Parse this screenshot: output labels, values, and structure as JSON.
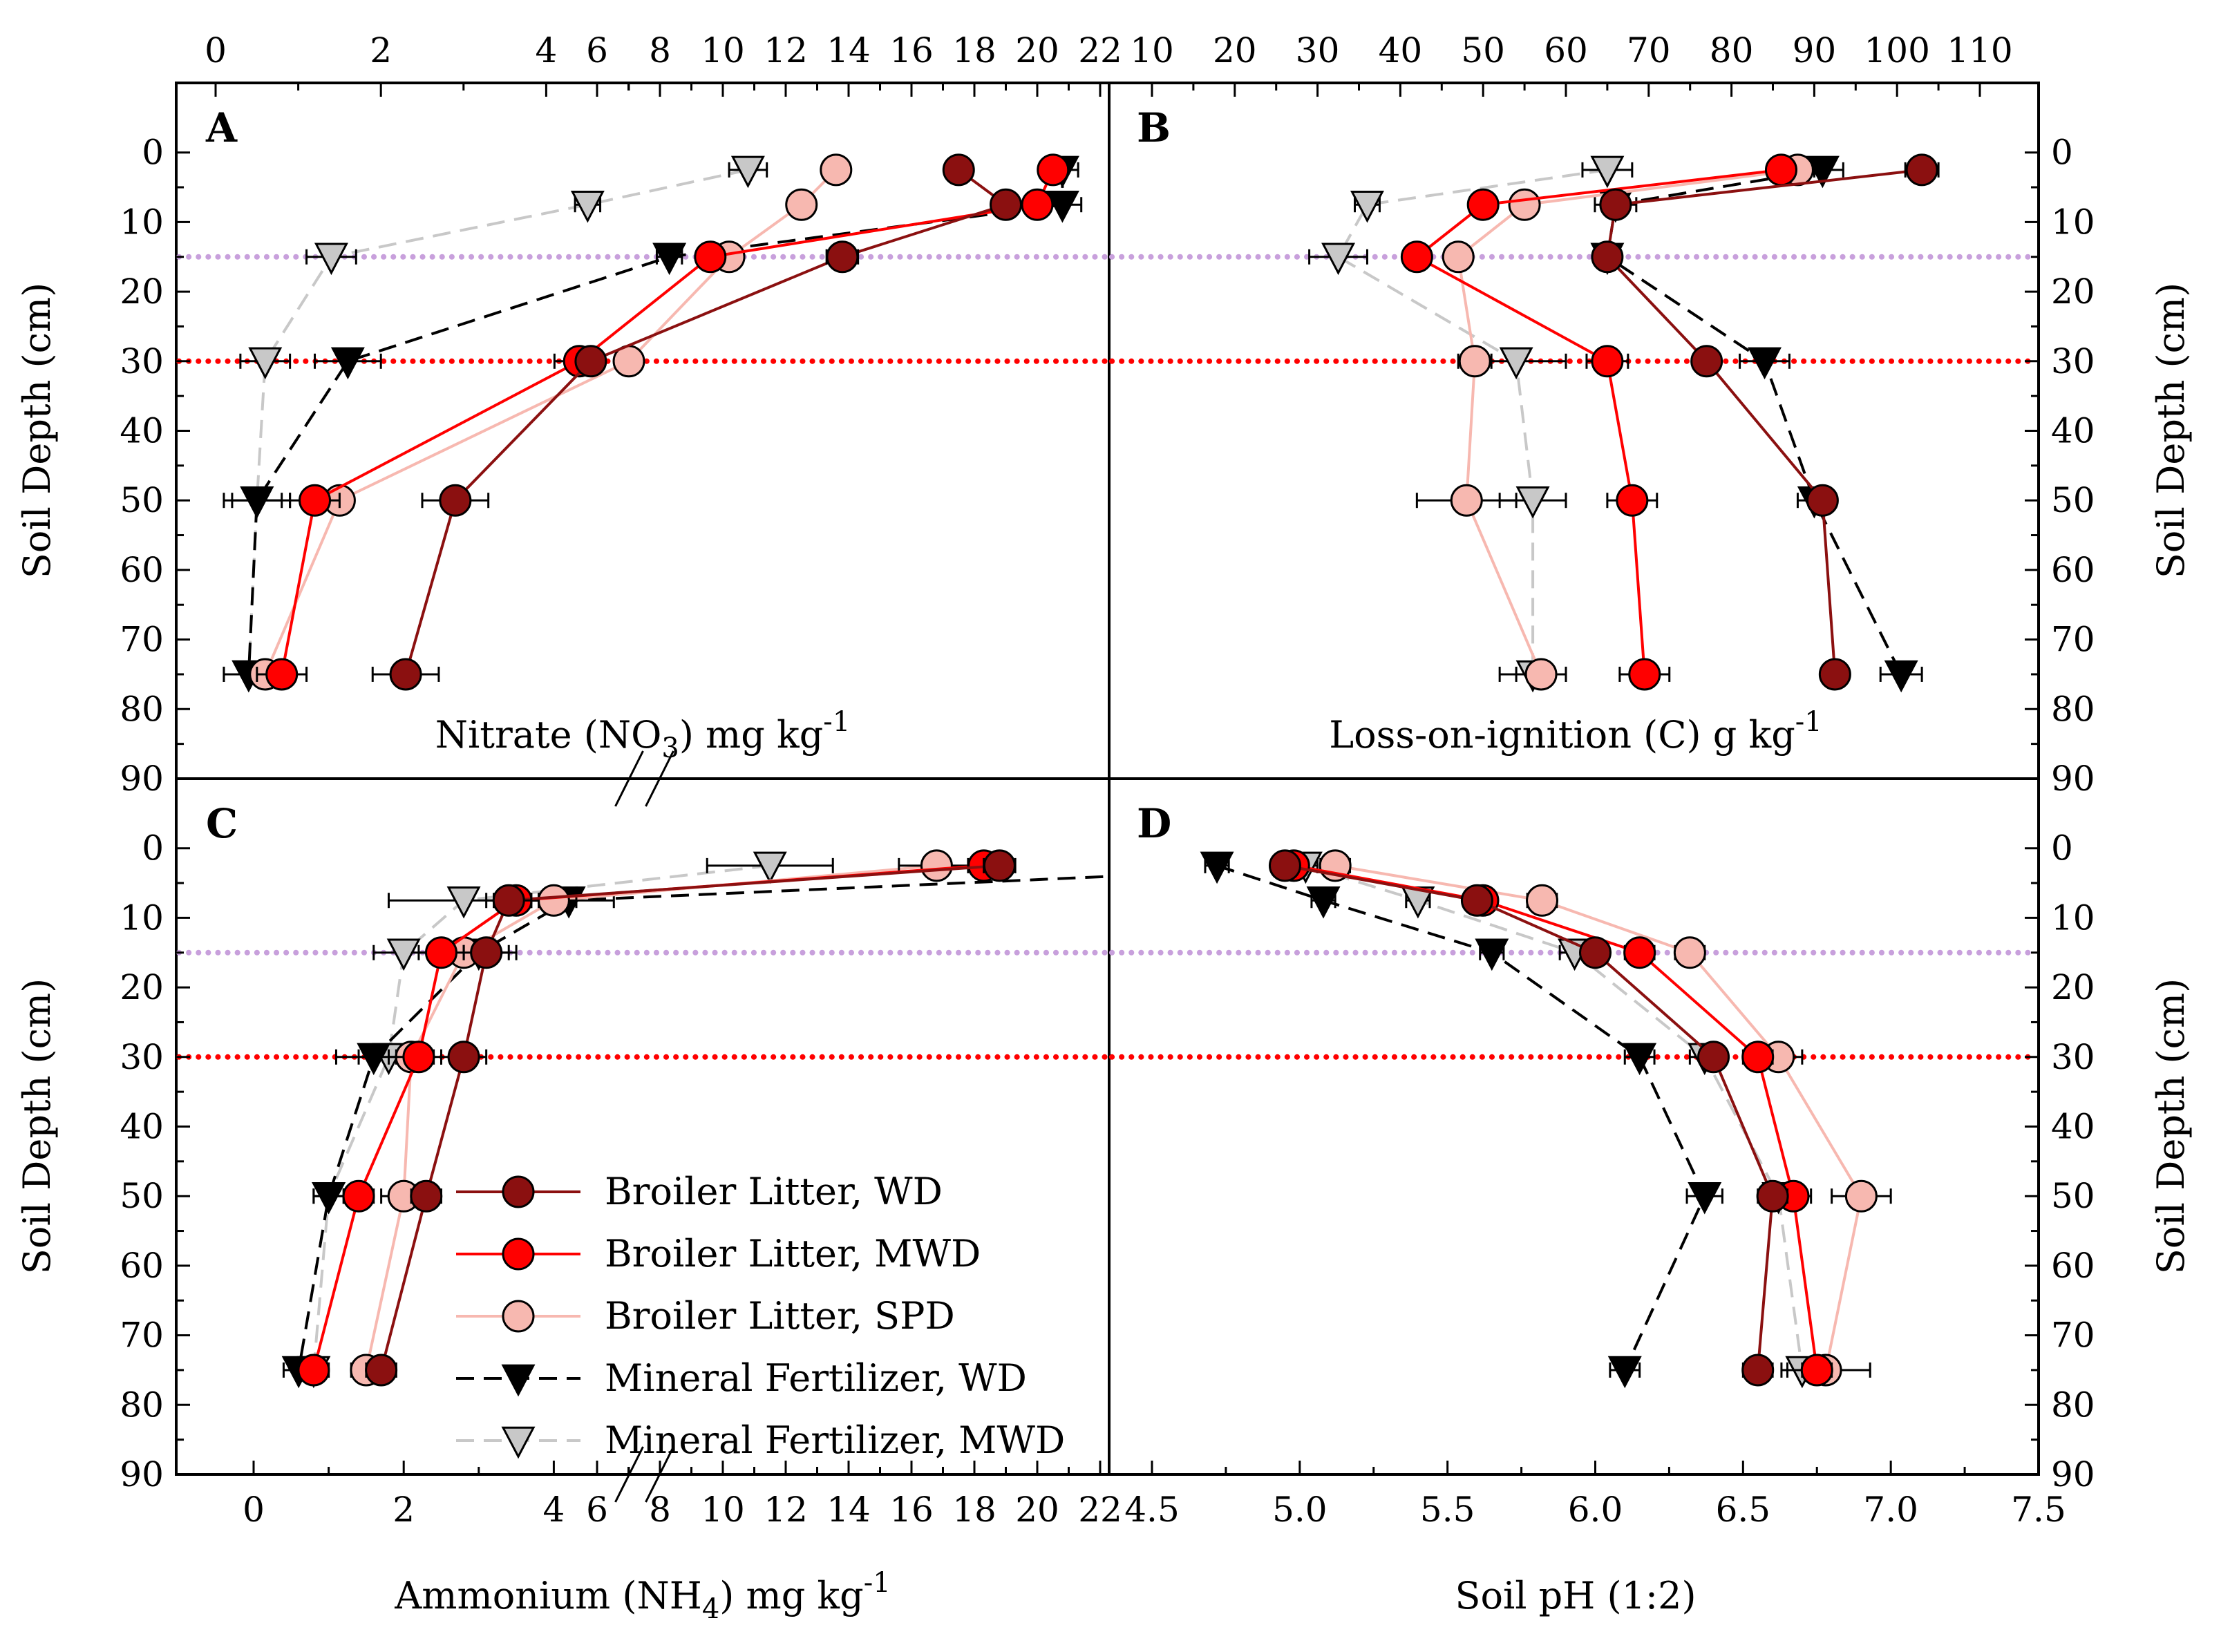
{
  "figure": {
    "left_ylabel": "Soil Depth (cm)",
    "right_ylabel": "Soil Depth (cm)",
    "depth_ticks": [
      "0",
      "10",
      "20",
      "30",
      "40",
      "50",
      "60",
      "70",
      "80",
      "90"
    ]
  },
  "legend": [
    {
      "name": "Broiler Litter, WD",
      "marker": "circle",
      "color": "#8b1010",
      "line": "solid"
    },
    {
      "name": "Broiler Litter, MWD",
      "marker": "circle",
      "color": "#ff0000",
      "line": "solid"
    },
    {
      "name": "Broiler Litter, SPD",
      "marker": "circle",
      "color": "#f7b8b0",
      "line": "solid"
    },
    {
      "name": "Mineral Fertilizer, WD",
      "marker": "triangle-down",
      "color": "#000000",
      "line": "dashed"
    },
    {
      "name": "Mineral Fertilizer, MWD",
      "marker": "triangle-down",
      "color": "#c8c8c8",
      "line": "dashed"
    }
  ],
  "reference_lines": [
    {
      "depth": 15,
      "color": "#c8a0dc",
      "style": "dotted"
    },
    {
      "depth": 30,
      "color": "#ff0000",
      "style": "dotted"
    }
  ],
  "chart_data": [
    {
      "panel": "A",
      "type": "line",
      "title": "",
      "xlabel_main": "Nitrate (NO",
      "xlabel_sub": "3",
      "xlabel_rest": ") mg kg",
      "xlabel_sup": "-1",
      "ylabel": "Soil Depth (cm)",
      "xaxis_position": "top",
      "x_break": [
        5,
        8
      ],
      "xticks": [
        "0",
        "2",
        "4",
        "6",
        "8",
        "10",
        "12",
        "14",
        "16",
        "18",
        "20",
        "22"
      ],
      "ylim": [
        90,
        -10
      ],
      "depths": [
        2.5,
        7.5,
        15,
        30,
        50,
        75
      ],
      "series": [
        {
          "name": "Broiler Litter, WD",
          "values": [
            17.5,
            19.0,
            13.8,
            5.8,
            2.9,
            2.3
          ],
          "errors": [
            0.4,
            0.4,
            0.5,
            0.3,
            0.4,
            0.4
          ]
        },
        {
          "name": "Broiler Litter, MWD",
          "values": [
            20.5,
            20.0,
            9.6,
            4.4,
            1.2,
            0.8
          ],
          "errors": [
            0.3,
            0.3,
            0.3,
            0.3,
            0.3,
            0.3
          ]
        },
        {
          "name": "Broiler Litter, SPD",
          "values": [
            13.6,
            12.5,
            10.2,
            5.0,
            1.5,
            0.6
          ],
          "errors": [
            0,
            0,
            0,
            0,
            0,
            0
          ]
        },
        {
          "name": "Mineral Fertilizer, WD",
          "values": [
            20.8,
            20.8,
            8.3,
            1.6,
            0.5,
            0.4
          ],
          "errors": [
            0.5,
            0.6,
            0.4,
            0.4,
            0.4,
            0.3
          ]
        },
        {
          "name": "Mineral Fertilizer, MWD",
          "values": [
            10.8,
            5.7,
            1.4,
            0.6,
            0.5,
            0.4
          ],
          "errors": [
            0.6,
            0.4,
            0.3,
            0.3,
            0.3,
            0.3
          ]
        }
      ]
    },
    {
      "panel": "B",
      "type": "line",
      "title": "",
      "xlabel_main": "Loss-on-ignition (C) g kg",
      "xlabel_sup": "-1",
      "ylabel": "Soil Depth (cm)",
      "xaxis_position": "top",
      "xticks": [
        "10",
        "20",
        "30",
        "40",
        "50",
        "60",
        "70",
        "80",
        "90",
        "100",
        "110"
      ],
      "xlim": [
        9,
        116
      ],
      "ylim": [
        90,
        -10
      ],
      "depths": [
        2.5,
        7.5,
        15,
        30,
        50,
        75
      ],
      "series": [
        {
          "name": "Broiler Litter, WD",
          "values": [
            103.0,
            66.0,
            65.0,
            77.0,
            91.0,
            92.5
          ],
          "errors": [
            2.0,
            1.5,
            1.0,
            1.0,
            1.5,
            1.5
          ]
        },
        {
          "name": "Broiler Litter, MWD",
          "values": [
            86.0,
            50.0,
            42.0,
            65.0,
            68.0,
            69.5
          ],
          "errors": [
            1.0,
            1.5,
            1.0,
            2.5,
            3.0,
            3.0
          ]
        },
        {
          "name": "Broiler Litter, SPD",
          "values": [
            88.0,
            55.0,
            47.0,
            49.0,
            48.0,
            57.0
          ],
          "errors": [
            2.0,
            1.5,
            1.0,
            2.0,
            6.0,
            3.0
          ]
        },
        {
          "name": "Mineral Fertilizer, WD",
          "values": [
            91.0,
            66.0,
            65.0,
            84.0,
            90.0,
            100.5
          ],
          "errors": [
            2.5,
            2.5,
            1.0,
            3.0,
            2.0,
            2.5
          ]
        },
        {
          "name": "Mineral Fertilizer, MWD",
          "values": [
            65.0,
            36.0,
            32.5,
            54.0,
            56.0,
            56.0
          ],
          "errors": [
            3.0,
            1.5,
            3.5,
            6.0,
            4.0,
            4.0
          ]
        }
      ]
    },
    {
      "panel": "C",
      "type": "line",
      "title": "",
      "xlabel_main": "Ammonium (NH",
      "xlabel_sub": "4",
      "xlabel_rest": ") mg kg",
      "xlabel_sup": "-1",
      "ylabel": "Soil Depth (cm)",
      "xaxis_position": "bottom",
      "x_break": [
        5,
        8
      ],
      "xticks": [
        "0",
        "2",
        "4",
        "6",
        "8",
        "10",
        "12",
        "14",
        "16",
        "18",
        "20",
        "22"
      ],
      "ylim": [
        90,
        -10
      ],
      "depths": [
        2.5,
        7.5,
        15,
        30,
        50,
        75
      ],
      "series": [
        {
          "name": "Broiler Litter, WD",
          "values": [
            18.8,
            3.4,
            3.1,
            2.8,
            2.3,
            1.7
          ],
          "errors": [
            0.5,
            0.3,
            0.3,
            0.3,
            0.2,
            0.2
          ]
        },
        {
          "name": "Broiler Litter, MWD",
          "values": [
            18.3,
            3.5,
            2.5,
            2.2,
            1.4,
            0.8
          ],
          "errors": [
            0.5,
            0.3,
            0.3,
            0.3,
            0.2,
            0.2
          ]
        },
        {
          "name": "Broiler Litter, SPD",
          "values": [
            16.8,
            4.0,
            2.8,
            2.1,
            2.0,
            1.5
          ],
          "errors": [
            1.2,
            0.3,
            0.3,
            0.3,
            0.3,
            0.2
          ]
        },
        {
          "name": "Mineral Fertilizer, WD",
          "values": [
            30.0,
            4.2,
            3.0,
            1.6,
            1.0,
            0.6
          ],
          "errors": [
            5.0,
            0.6,
            0.5,
            0.5,
            0.2,
            0.2
          ]
        },
        {
          "name": "Mineral Fertilizer, MWD",
          "values": [
            11.5,
            2.8,
            2.0,
            1.8,
            1.0,
            0.8
          ],
          "errors": [
            2.0,
            1.0,
            0.4,
            0.4,
            0.2,
            0.2
          ]
        }
      ]
    },
    {
      "panel": "D",
      "type": "line",
      "title": "",
      "xlabel_main": "Soil pH (1:2)",
      "ylabel": "Soil Depth (cm)",
      "xaxis_position": "bottom",
      "xticks": [
        "4.5",
        "5.0",
        "5.5",
        "6.0",
        "6.5",
        "7.0",
        "7.5"
      ],
      "xlim": [
        4.45,
        7.5
      ],
      "ylim": [
        90,
        -10
      ],
      "depths": [
        2.5,
        7.5,
        15,
        30,
        50,
        75
      ],
      "series": [
        {
          "name": "Broiler Litter, WD",
          "values": [
            4.95,
            5.6,
            6.0,
            6.4,
            6.6,
            6.55
          ],
          "errors": [
            0.03,
            0.04,
            0.04,
            0.04,
            0.05,
            0.05
          ]
        },
        {
          "name": "Broiler Litter, MWD",
          "values": [
            4.98,
            5.62,
            6.15,
            6.55,
            6.67,
            6.75
          ],
          "errors": [
            0.04,
            0.04,
            0.05,
            0.05,
            0.06,
            0.05
          ]
        },
        {
          "name": "Broiler Litter, SPD",
          "values": [
            5.12,
            5.82,
            6.32,
            6.62,
            6.9,
            6.78
          ],
          "errors": [
            0.05,
            0.05,
            0.05,
            0.08,
            0.1,
            0.15
          ]
        },
        {
          "name": "Mineral Fertilizer, WD",
          "values": [
            4.72,
            5.08,
            5.65,
            6.15,
            6.37,
            6.1
          ],
          "errors": [
            0.04,
            0.04,
            0.04,
            0.05,
            0.06,
            0.05
          ]
        },
        {
          "name": "Mineral Fertilizer, MWD",
          "values": [
            5.02,
            5.4,
            5.93,
            6.37,
            6.62,
            6.7
          ],
          "errors": [
            0.04,
            0.04,
            0.05,
            0.05,
            0.06,
            0.05
          ]
        }
      ]
    }
  ]
}
